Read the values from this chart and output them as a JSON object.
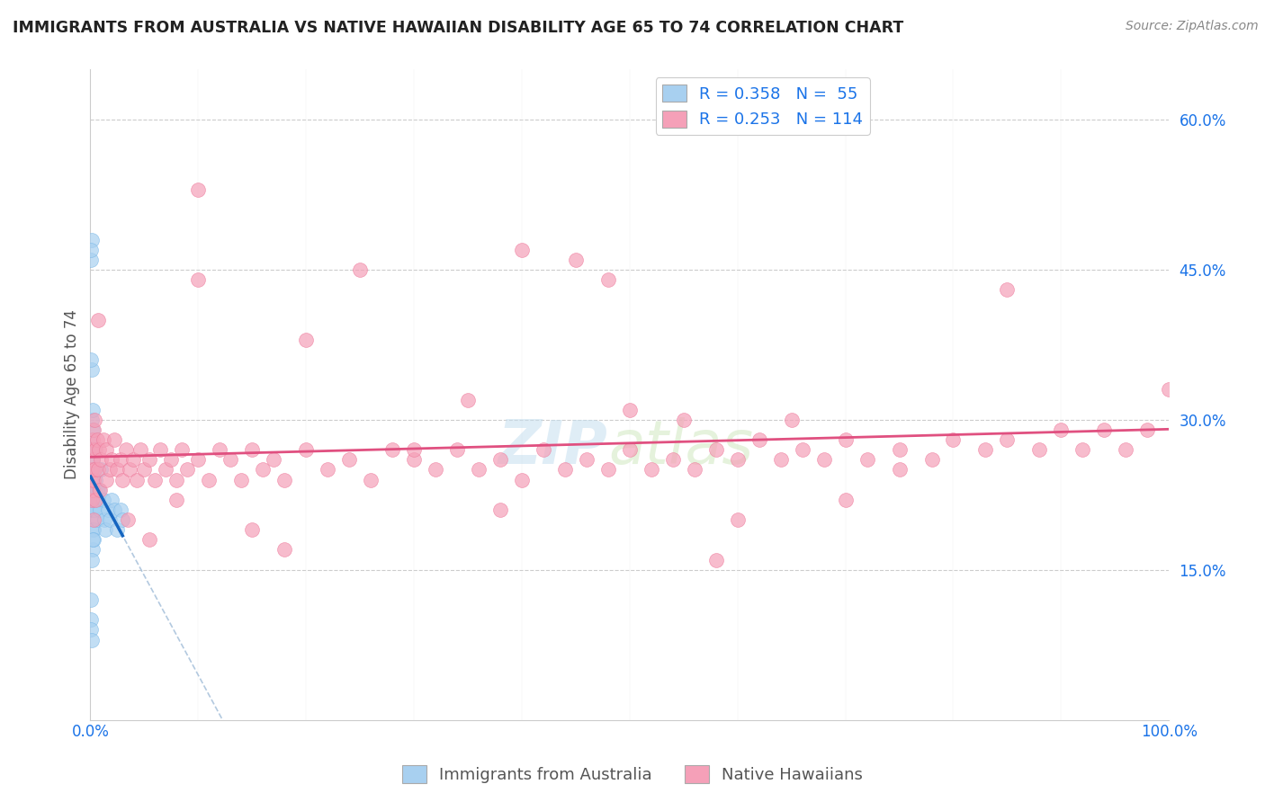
{
  "title": "IMMIGRANTS FROM AUSTRALIA VS NATIVE HAWAIIAN DISABILITY AGE 65 TO 74 CORRELATION CHART",
  "source_text": "Source: ZipAtlas.com",
  "ylabel": "Disability Age 65 to 74",
  "xlim": [
    0.0,
    1.0
  ],
  "ylim": [
    0.0,
    0.65
  ],
  "yticks": [
    0.0,
    0.15,
    0.3,
    0.45,
    0.6
  ],
  "ytick_labels": [
    "",
    "15.0%",
    "30.0%",
    "45.0%",
    "60.0%"
  ],
  "xtick_labels_left": "0.0%",
  "xtick_labels_right": "100.0%",
  "blue_fill_color": "#a8d0f0",
  "blue_edge_color": "#7ab8e8",
  "pink_fill_color": "#f5a0b8",
  "pink_edge_color": "#ee7a9b",
  "blue_line_color": "#1565c0",
  "blue_dash_color": "#a0bcd8",
  "pink_line_color": "#e05080",
  "background_color": "#ffffff",
  "grid_color": "#cccccc",
  "label_color": "#1a73e8",
  "legend_R1": "R = 0.358",
  "legend_N1": "N =  55",
  "legend_R2": "R = 0.253",
  "legend_N2": "N = 114",
  "watermark": "ZIPatlas",
  "blue_x": [
    0.0003,
    0.0005,
    0.0007,
    0.0008,
    0.001,
    0.001,
    0.0012,
    0.0013,
    0.0015,
    0.0015,
    0.0016,
    0.0017,
    0.002,
    0.002,
    0.002,
    0.0022,
    0.0022,
    0.0025,
    0.0025,
    0.003,
    0.003,
    0.003,
    0.0032,
    0.0035,
    0.004,
    0.004,
    0.005,
    0.005,
    0.006,
    0.006,
    0.007,
    0.008,
    0.009,
    0.01,
    0.012,
    0.013,
    0.014,
    0.016,
    0.018,
    0.02,
    0.022,
    0.025,
    0.028,
    0.03,
    0.001,
    0.0005,
    0.002,
    0.003,
    0.0008,
    0.0012,
    0.0018,
    0.0004,
    0.0006,
    0.0009,
    0.0015
  ],
  "blue_y": [
    0.22,
    0.46,
    0.25,
    0.28,
    0.35,
    0.3,
    0.22,
    0.27,
    0.24,
    0.2,
    0.21,
    0.23,
    0.26,
    0.22,
    0.29,
    0.19,
    0.17,
    0.24,
    0.21,
    0.25,
    0.22,
    0.19,
    0.21,
    0.23,
    0.27,
    0.22,
    0.24,
    0.21,
    0.23,
    0.2,
    0.22,
    0.23,
    0.21,
    0.25,
    0.22,
    0.2,
    0.19,
    0.21,
    0.2,
    0.22,
    0.21,
    0.19,
    0.21,
    0.2,
    0.48,
    0.47,
    0.31,
    0.18,
    0.36,
    0.16,
    0.18,
    0.1,
    0.12,
    0.09,
    0.08
  ],
  "pink_x": [
    0.0005,
    0.001,
    0.001,
    0.0015,
    0.002,
    0.002,
    0.002,
    0.003,
    0.003,
    0.004,
    0.004,
    0.005,
    0.005,
    0.006,
    0.007,
    0.008,
    0.009,
    0.01,
    0.012,
    0.015,
    0.015,
    0.018,
    0.02,
    0.022,
    0.025,
    0.028,
    0.03,
    0.033,
    0.036,
    0.04,
    0.043,
    0.046,
    0.05,
    0.055,
    0.06,
    0.065,
    0.07,
    0.075,
    0.08,
    0.085,
    0.09,
    0.1,
    0.11,
    0.12,
    0.13,
    0.14,
    0.15,
    0.16,
    0.17,
    0.18,
    0.2,
    0.22,
    0.24,
    0.26,
    0.28,
    0.3,
    0.32,
    0.34,
    0.36,
    0.38,
    0.4,
    0.42,
    0.44,
    0.46,
    0.48,
    0.5,
    0.52,
    0.54,
    0.56,
    0.58,
    0.6,
    0.62,
    0.64,
    0.66,
    0.68,
    0.7,
    0.72,
    0.75,
    0.78,
    0.8,
    0.83,
    0.85,
    0.88,
    0.9,
    0.92,
    0.94,
    0.96,
    0.98,
    1.0,
    0.003,
    0.007,
    0.035,
    0.055,
    0.1,
    0.2,
    0.35,
    0.5,
    0.65,
    0.75,
    0.85,
    0.1,
    0.25,
    0.4,
    0.6,
    0.7,
    0.45,
    0.55,
    0.3,
    0.15,
    0.08,
    0.18,
    0.38,
    0.48,
    0.58
  ],
  "pink_y": [
    0.24,
    0.27,
    0.22,
    0.25,
    0.28,
    0.23,
    0.26,
    0.29,
    0.24,
    0.3,
    0.25,
    0.27,
    0.22,
    0.28,
    0.25,
    0.27,
    0.23,
    0.26,
    0.28,
    0.24,
    0.27,
    0.25,
    0.26,
    0.28,
    0.25,
    0.26,
    0.24,
    0.27,
    0.25,
    0.26,
    0.24,
    0.27,
    0.25,
    0.26,
    0.24,
    0.27,
    0.25,
    0.26,
    0.24,
    0.27,
    0.25,
    0.26,
    0.24,
    0.27,
    0.26,
    0.24,
    0.27,
    0.25,
    0.26,
    0.24,
    0.27,
    0.25,
    0.26,
    0.24,
    0.27,
    0.26,
    0.25,
    0.27,
    0.25,
    0.26,
    0.24,
    0.27,
    0.25,
    0.26,
    0.25,
    0.27,
    0.25,
    0.26,
    0.25,
    0.27,
    0.26,
    0.28,
    0.26,
    0.27,
    0.26,
    0.28,
    0.26,
    0.27,
    0.26,
    0.28,
    0.27,
    0.28,
    0.27,
    0.29,
    0.27,
    0.29,
    0.27,
    0.29,
    0.33,
    0.2,
    0.4,
    0.2,
    0.18,
    0.44,
    0.38,
    0.32,
    0.31,
    0.3,
    0.25,
    0.43,
    0.53,
    0.45,
    0.47,
    0.2,
    0.22,
    0.46,
    0.3,
    0.27,
    0.19,
    0.22,
    0.17,
    0.21,
    0.44,
    0.16
  ]
}
